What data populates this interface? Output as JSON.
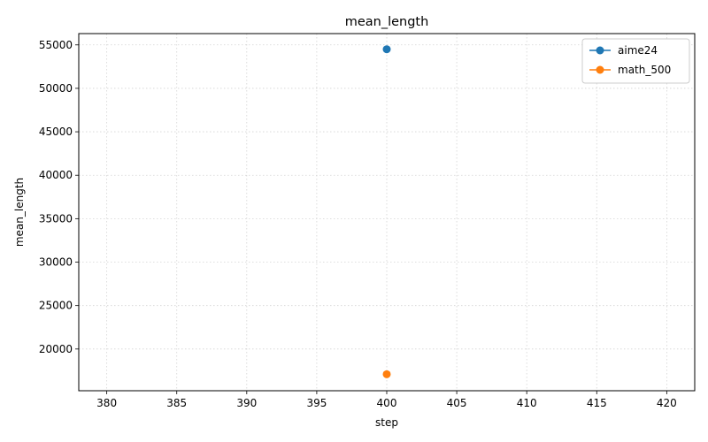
{
  "chart_data": {
    "type": "line",
    "title": "mean_length",
    "xlabel": "step",
    "ylabel": "mean_length",
    "xlim": [
      378,
      422
    ],
    "ylim": [
      15200,
      56300
    ],
    "x_ticks": [
      380,
      385,
      390,
      395,
      400,
      405,
      410,
      415,
      420
    ],
    "y_ticks": [
      20000,
      25000,
      30000,
      35000,
      40000,
      45000,
      50000,
      55000
    ],
    "grid": true,
    "legend_position": "top-right",
    "series": [
      {
        "name": "aime24",
        "color": "#1f77b4",
        "x": [
          400
        ],
        "y": [
          54500
        ]
      },
      {
        "name": "math_500",
        "color": "#ff7f0e",
        "x": [
          400
        ],
        "y": [
          17100
        ]
      }
    ]
  }
}
